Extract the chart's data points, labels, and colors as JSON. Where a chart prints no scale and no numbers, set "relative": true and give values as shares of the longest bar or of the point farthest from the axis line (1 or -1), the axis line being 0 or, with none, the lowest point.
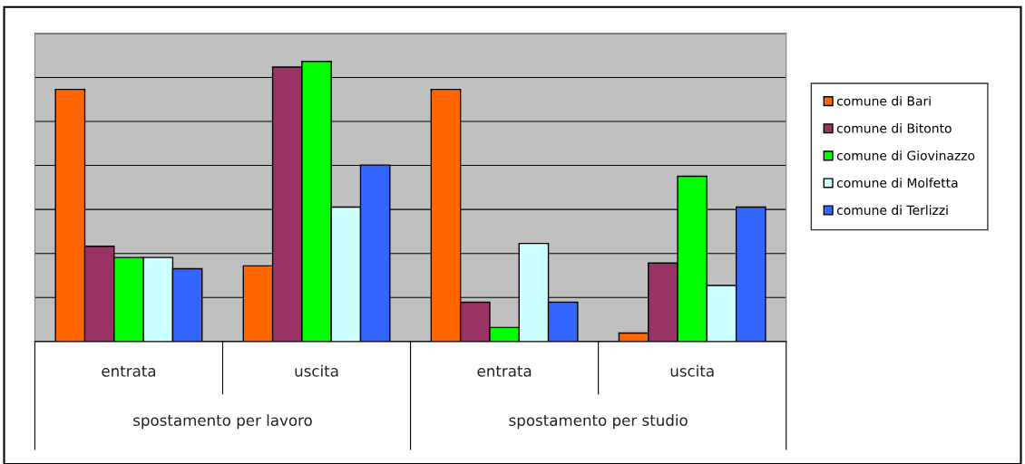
{
  "chart_data": {
    "type": "bar",
    "relative": true,
    "grid": "y",
    "legend": "right",
    "categories": [
      "entrata",
      "uscita",
      "entrata",
      "uscita"
    ],
    "annotations": [
      "spostamento per lavoro",
      "spostamento per studio"
    ],
    "series": [
      {
        "name": "comune di Bari",
        "color": "#ff6600",
        "values": [
          0.9,
          0.27,
          0.9,
          0.03
        ]
      },
      {
        "name": "comune di Bitonto",
        "color": "#993366",
        "values": [
          0.34,
          0.98,
          0.14,
          0.28
        ]
      },
      {
        "name": "comune di Giovinazzo",
        "color": "#00ff00",
        "values": [
          0.3,
          1,
          0.05,
          0.59
        ]
      },
      {
        "name": "comune di Molfetta",
        "color": "#ccffff",
        "values": [
          0.3,
          0.48,
          0.35,
          0.2
        ]
      },
      {
        "name": "comune di Terlizzi",
        "color": "#3366ff",
        "values": [
          0.26,
          0.63,
          0.14,
          0.48
        ]
      }
    ]
  }
}
